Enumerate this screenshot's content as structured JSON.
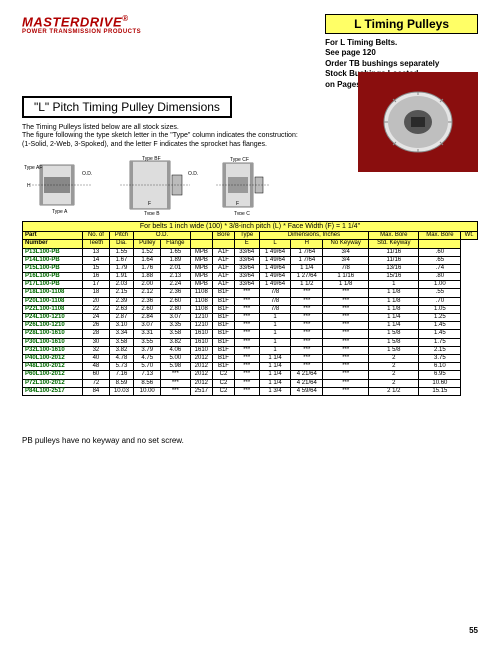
{
  "logo": {
    "name": "MASTERDRIVE",
    "sub": "POWER TRANSMISSION PRODUCTS"
  },
  "rightTitle": "L Timing Pulleys",
  "rightNotes": [
    "For L Timing Belts.",
    "See page 120",
    "Order TB bushings separately",
    "Stock Bushings Located",
    "on Pages 87-88."
  ],
  "sectionTitle": "\"L\" Pitch Timing Pulley Dimensions",
  "intro1": "The Timing Pulleys listed below are all stock sizes.",
  "intro2": "The figure following the type sketch letter in the \"Type\" column indicates the construction: (1-Solid, 2-Web, 3-Spoked), and the letter F indicates the sprocket has flanges.",
  "diagLabels": {
    "a": "Type AF",
    "a2": "Type A (Bored-to-size)",
    "b": "Type BF",
    "b2": "Type B",
    "c": "Type CF",
    "c2": "Type C",
    "od": "O.D.",
    "f": "F",
    "h": "H"
  },
  "caption": "For belts 1 inch wide (100) * 3/8-inch pitch (L) * Face Width (F) = 1 1/4\"",
  "headers": {
    "r1": [
      "Part",
      "No. of",
      "Pitch",
      "O.D.",
      "",
      "Bore",
      "Type",
      "Dimensions, Inches",
      "",
      "",
      "Max. Bore",
      "Max. Bore",
      "Wt."
    ],
    "r1spans": [
      1,
      1,
      1,
      1,
      1,
      1,
      1,
      3,
      0,
      0,
      1,
      1,
      1
    ],
    "r2": [
      "Number",
      "Teeth",
      "Dia.",
      "Pulley",
      "Flange",
      "",
      "",
      "E",
      "L",
      "H",
      "No Keyway",
      "Std. Keyway",
      ""
    ]
  },
  "rows": [
    [
      "P13L100-PB",
      "13",
      "1.55",
      "1.52",
      "1.65",
      "MPB",
      "A1F",
      "33/64",
      "1 49/64",
      "1 7/64",
      "3/4",
      "11/16",
      ".60"
    ],
    [
      "P14L100-PB",
      "14",
      "1.67",
      "1.64",
      "1.89",
      "MPB",
      "A1F",
      "33/64",
      "1 49/64",
      "1 7/64",
      "3/4",
      "11/16",
      ".65"
    ],
    [
      "P15L100-PB",
      "15",
      "1.79",
      "1.76",
      "2.01",
      "MPB",
      "A1F",
      "33/64",
      "1 49/64",
      "1 1/4",
      "7/8",
      "13/16",
      ".74"
    ],
    [
      "P16L100-PB",
      "16",
      "1.91",
      "1.88",
      "2.13",
      "MPB",
      "A1F",
      "33/64",
      "1 49/64",
      "1 27/64",
      "1 1/16",
      "15/16",
      ".80"
    ],
    [
      "P17L100-PB",
      "17",
      "2.03",
      "2.00",
      "2.24",
      "MPB",
      "A1F",
      "33/64",
      "1 49/64",
      "1 1/2",
      "1 1/8",
      "1",
      "1.00"
    ],
    [
      "P18L100-1108",
      "18",
      "2.15",
      "2.12",
      "2.36",
      "1108",
      "B1F",
      "***",
      "7/8",
      "***",
      "***",
      "1 1/8",
      ".55"
    ],
    [
      "P20L100-1108",
      "20",
      "2.39",
      "2.36",
      "2.60",
      "1108",
      "B1F",
      "***",
      "7/8",
      "***",
      "***",
      "1 1/8",
      ".70"
    ],
    [
      "P22L100-1108",
      "22",
      "2.63",
      "2.60",
      "2.80",
      "1108",
      "B1F",
      "***",
      "7/8",
      "***",
      "***",
      "1 1/8",
      "1.05"
    ],
    [
      "P24L100-1210",
      "24",
      "2.87",
      "2.84",
      "3.07",
      "1210",
      "B1F",
      "***",
      "1",
      "***",
      "***",
      "1 1/4",
      "1.25"
    ],
    [
      "P26L100-1210",
      "26",
      "3.10",
      "3.07",
      "3.35",
      "1210",
      "B1F",
      "***",
      "1",
      "***",
      "***",
      "1 1/4",
      "1.45"
    ],
    [
      "P28L100-1610",
      "28",
      "3.34",
      "3.31",
      "3.58",
      "1610",
      "B1F",
      "***",
      "1",
      "***",
      "***",
      "1 5/8",
      "1.45"
    ],
    [
      "P30L100-1610",
      "30",
      "3.58",
      "3.55",
      "3.82",
      "1610",
      "B1F",
      "***",
      "1",
      "***",
      "***",
      "1 5/8",
      "1.75"
    ],
    [
      "P32L100-1610",
      "32",
      "3.82",
      "3.79",
      "4.06",
      "1610",
      "B1F",
      "***",
      "1",
      "***",
      "***",
      "1 5/8",
      "2.15"
    ],
    [
      "P40L100-2012",
      "40",
      "4.78",
      "4.75",
      "5.00",
      "2012",
      "B1F",
      "***",
      "1 1/4",
      "***",
      "***",
      "2",
      "3.75"
    ],
    [
      "P48L100-2012",
      "48",
      "5.73",
      "5.70",
      "5.98",
      "2012",
      "B1F",
      "***",
      "1 1/4",
      "***",
      "***",
      "2",
      "6.10"
    ],
    [
      "P60L100-2012",
      "60",
      "7.16",
      "7.13",
      "***",
      "2012",
      "C2",
      "***",
      "1 1/4",
      "4 21/64",
      "***",
      "2",
      "6.95"
    ],
    [
      "P72L100-2012",
      "72",
      "8.59",
      "8.56",
      "***",
      "2012",
      "C2",
      "***",
      "1 1/4",
      "4 21/64",
      "***",
      "2",
      "10.60"
    ],
    [
      "P84L100-2517",
      "84",
      "10.03",
      "10.00",
      "***",
      "2517",
      "C2",
      "***",
      "1 3/4",
      "4 59/64",
      "***",
      "2 1/2",
      "15.15"
    ]
  ],
  "footNote": "PB pulleys have no keyway and no set screw.",
  "pageNum": "55"
}
